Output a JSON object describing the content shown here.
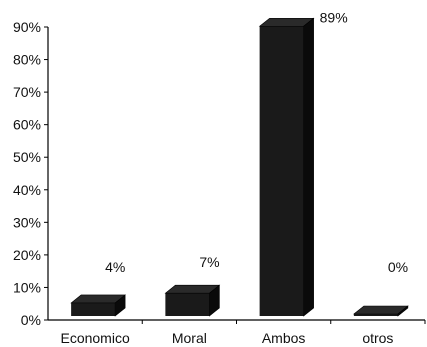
{
  "chart_data": {
    "type": "bar",
    "categories": [
      "Economico",
      "Moral",
      "Ambos",
      "otros"
    ],
    "values": [
      4,
      7,
      89,
      0
    ],
    "data_labels": [
      "4%",
      "7%",
      "89%",
      "0%"
    ],
    "title": "",
    "xlabel": "",
    "ylabel": "",
    "ylim": [
      0,
      90
    ],
    "yticks": [
      0,
      10,
      20,
      30,
      40,
      50,
      60,
      70,
      80,
      90
    ],
    "ytick_labels": [
      "0%",
      "10%",
      "20%",
      "30%",
      "40%",
      "50%",
      "60%",
      "70%",
      "80%",
      "90%"
    ],
    "grid": false,
    "legend": "none",
    "bar_style": "3d",
    "colors": {
      "bar_front": "#1a1a1a",
      "bar_side": "#0a0a0a",
      "bar_top": "#2a2a2a",
      "axis": "#000000"
    }
  }
}
